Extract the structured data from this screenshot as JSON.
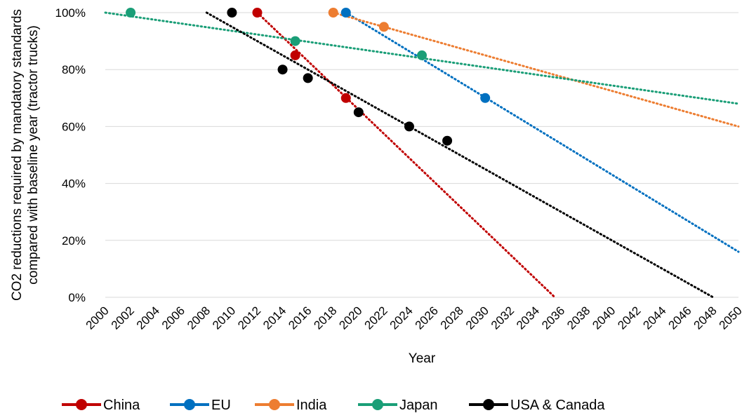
{
  "chart_data": {
    "type": "scatter",
    "title": "",
    "xlabel": "Year",
    "ylabel_line1": "CO2 reductions required by mandatory standards",
    "ylabel_line2": "compared with baseline year (tractor trucks)",
    "xlim": [
      2000,
      2050
    ],
    "ylim": [
      0,
      100
    ],
    "x_ticks": [
      "2000",
      "2002",
      "2004",
      "2006",
      "2008",
      "2010",
      "2012",
      "2014",
      "2016",
      "2018",
      "2020",
      "2022",
      "2024",
      "2026",
      "2028",
      "2030",
      "2032",
      "2034",
      "2036",
      "2038",
      "2040",
      "2042",
      "2044",
      "2046",
      "2048",
      "2050"
    ],
    "y_ticks": [
      "0%",
      "20%",
      "40%",
      "60%",
      "80%",
      "100%"
    ],
    "grid": "horizontal",
    "legend_position": "bottom",
    "series": [
      {
        "name": "China",
        "color": "#c00000",
        "points": [
          {
            "x": 2012,
            "y": 100
          },
          {
            "x": 2015,
            "y": 85
          },
          {
            "x": 2019,
            "y": 70
          }
        ],
        "trendline": [
          {
            "x": 2012,
            "y": 100
          },
          {
            "x": 2035.5,
            "y": 0
          }
        ]
      },
      {
        "name": "EU",
        "color": "#0070c0",
        "points": [
          {
            "x": 2019,
            "y": 100
          },
          {
            "x": 2030,
            "y": 70
          }
        ],
        "trendline": [
          {
            "x": 2019,
            "y": 100
          },
          {
            "x": 2050,
            "y": 16
          }
        ]
      },
      {
        "name": "India",
        "color": "#ed7d31",
        "points": [
          {
            "x": 2018,
            "y": 100
          },
          {
            "x": 2022,
            "y": 95
          }
        ],
        "trendline": [
          {
            "x": 2018,
            "y": 100
          },
          {
            "x": 2050,
            "y": 60
          }
        ]
      },
      {
        "name": "Japan",
        "color": "#1a9e77",
        "points": [
          {
            "x": 2002,
            "y": 100
          },
          {
            "x": 2015,
            "y": 90
          },
          {
            "x": 2025,
            "y": 85
          }
        ],
        "trendline": [
          {
            "x": 2000,
            "y": 100
          },
          {
            "x": 2050,
            "y": 68
          }
        ]
      },
      {
        "name": "USA & Canada",
        "color": "#000000",
        "points": [
          {
            "x": 2010,
            "y": 100
          },
          {
            "x": 2014,
            "y": 80
          },
          {
            "x": 2016,
            "y": 77
          },
          {
            "x": 2020,
            "y": 65
          },
          {
            "x": 2024,
            "y": 60
          },
          {
            "x": 2027,
            "y": 55
          }
        ],
        "trendline": [
          {
            "x": 2008,
            "y": 100
          },
          {
            "x": 2048,
            "y": 0
          }
        ]
      }
    ]
  }
}
